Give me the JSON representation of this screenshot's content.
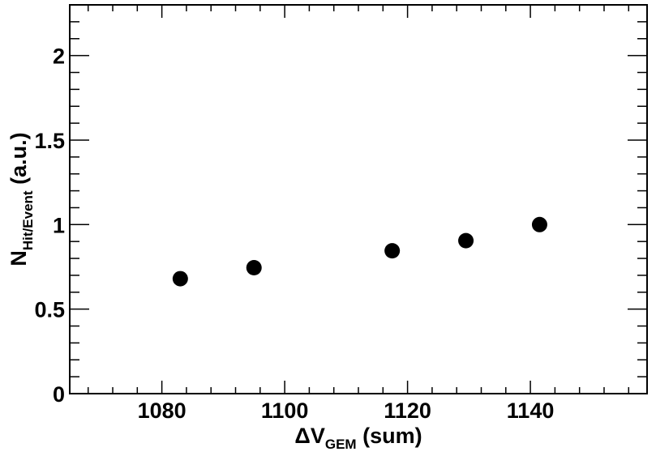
{
  "chart_data": {
    "type": "scatter",
    "title": "",
    "xlabel": {
      "main": "ΔV",
      "sub": "GEM",
      "suffix": " (sum)"
    },
    "ylabel": {
      "main": "N",
      "sub": "Hit/Event",
      "suffix": " (a.u.)"
    },
    "xlim": [
      1065,
      1159
    ],
    "ylim": [
      0,
      2.3
    ],
    "x_ticks": [
      1080,
      1100,
      1120,
      1140
    ],
    "x_tick_labels": [
      "1080",
      "1100",
      "1120",
      "1140"
    ],
    "y_ticks": [
      0,
      0.5,
      1,
      1.5,
      2
    ],
    "y_tick_labels": [
      "0",
      "0.5",
      "1",
      "1.5",
      "2"
    ],
    "x_minor_step": 4,
    "y_minor_step": 0.1,
    "grid": false,
    "legend": "none",
    "marker_color": "#000000",
    "series": [
      {
        "x": [
          1083,
          1095,
          1117.5,
          1129.5,
          1141.5
        ],
        "values": [
          0.68,
          0.745,
          0.845,
          0.905,
          1.0
        ]
      }
    ]
  }
}
